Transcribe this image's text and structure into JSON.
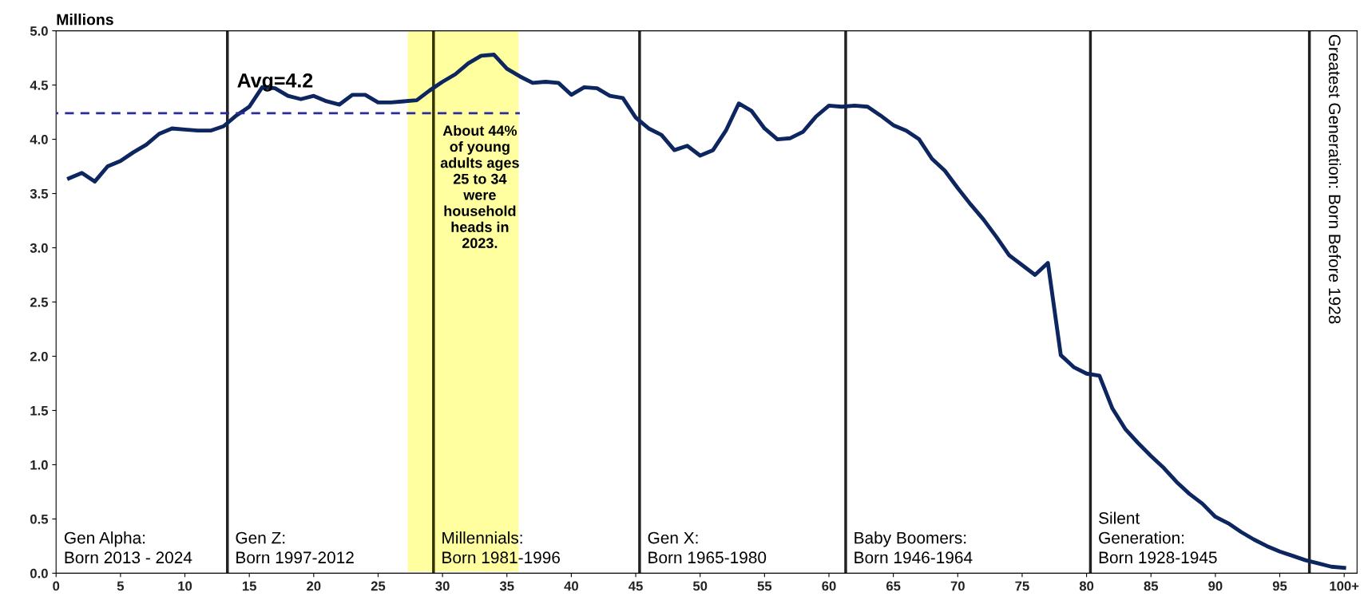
{
  "chart_data": {
    "type": "line",
    "ylabel": "Millions",
    "x": [
      1,
      2,
      3,
      4,
      5,
      6,
      7,
      8,
      9,
      10,
      11,
      12,
      13,
      14,
      15,
      16,
      17,
      18,
      19,
      20,
      21,
      22,
      23,
      24,
      25,
      26,
      27,
      28,
      29,
      30,
      31,
      32,
      33,
      34,
      35,
      36,
      37,
      38,
      39,
      40,
      41,
      42,
      43,
      44,
      45,
      46,
      47,
      48,
      49,
      50,
      51,
      52,
      53,
      54,
      55,
      56,
      57,
      58,
      59,
      60,
      61,
      62,
      63,
      64,
      65,
      66,
      67,
      68,
      69,
      70,
      71,
      72,
      73,
      74,
      75,
      76,
      77,
      78,
      79,
      80,
      81,
      82,
      83,
      84,
      85,
      86,
      87,
      88,
      89,
      90,
      91,
      92,
      93,
      94,
      95,
      96,
      97,
      98,
      99,
      100
    ],
    "series": [
      {
        "color": "#0d2660",
        "values": [
          3.64,
          3.69,
          3.61,
          3.75,
          3.8,
          3.88,
          3.95,
          4.05,
          4.1,
          4.09,
          4.08,
          4.08,
          4.12,
          4.22,
          4.3,
          4.48,
          4.47,
          4.4,
          4.37,
          4.4,
          4.35,
          4.32,
          4.41,
          4.41,
          4.34,
          4.34,
          4.35,
          4.36,
          4.45,
          4.53,
          4.6,
          4.7,
          4.77,
          4.78,
          4.65,
          4.58,
          4.52,
          4.53,
          4.52,
          4.41,
          4.48,
          4.47,
          4.4,
          4.38,
          4.2,
          4.1,
          4.04,
          3.9,
          3.94,
          3.85,
          3.9,
          4.08,
          4.33,
          4.26,
          4.1,
          4.0,
          4.01,
          4.07,
          4.21,
          4.31,
          4.3,
          4.31,
          4.3,
          4.22,
          4.13,
          4.08,
          4.0,
          3.82,
          3.71,
          3.55,
          3.4,
          3.26,
          3.1,
          2.93,
          2.84,
          2.75,
          2.86,
          2.01,
          1.9,
          1.84,
          1.82,
          1.52,
          1.33,
          1.2,
          1.08,
          0.97,
          0.84,
          0.73,
          0.64,
          0.52,
          0.46,
          0.38,
          0.31,
          0.25,
          0.2,
          0.16,
          0.12,
          0.09,
          0.06,
          0.05
        ]
      },
      {
        "type": "line",
        "name": "Avg=4.2",
        "color": "#2b2b9a",
        "line_style": "dashed",
        "x": [
          0,
          36
        ],
        "values": [
          4.24,
          4.24
        ]
      }
    ],
    "xlim": [
      0,
      101
    ],
    "ylim": [
      0,
      5
    ],
    "xticks": [
      0,
      5,
      10,
      15,
      20,
      25,
      30,
      35,
      40,
      45,
      50,
      55,
      60,
      65,
      70,
      75,
      80,
      85,
      90,
      95,
      {
        "value": 100,
        "label": "100+"
      }
    ],
    "yticks": [
      {
        "value": 0,
        "label": "0.0"
      },
      {
        "value": 0.5,
        "label": "0.5"
      },
      {
        "value": 1,
        "label": "1.0"
      },
      {
        "value": 1.5,
        "label": "1.5"
      },
      {
        "value": 2,
        "label": "2.0"
      },
      {
        "value": 2.5,
        "label": "2.5"
      },
      {
        "value": 3,
        "label": "3.0"
      },
      {
        "value": 3.5,
        "label": "3.5"
      },
      {
        "value": 4,
        "label": "4.0"
      },
      {
        "value": 4.5,
        "label": "4.5"
      },
      {
        "value": 5,
        "label": "5.0"
      }
    ],
    "ref_lines": [
      {
        "axis": "x",
        "value": 13.3,
        "color": "#222222"
      },
      {
        "axis": "x",
        "value": 29.3,
        "color": "#333300"
      },
      {
        "axis": "x",
        "value": 45.3,
        "color": "#222222"
      },
      {
        "axis": "x",
        "value": 61.3,
        "color": "#222222"
      },
      {
        "axis": "x",
        "value": 80.3,
        "color": "#222222"
      },
      {
        "axis": "x",
        "value": 97.3,
        "color": "#222222"
      }
    ],
    "annotations": [
      "Gen Alpha:\nBorn 2013 - 2024",
      "Gen Z:\nBorn 1997-2012",
      "Millennials:\nBorn 1981-1996",
      "Gen X:\nBorn 1965-1980",
      "Baby Boomers:\nBorn 1946-1964",
      "Silent\nGeneration:\nBorn 1928-1945",
      "Greatest Generation: Born Before 1928"
    ],
    "bands": [
      {
        "axis": "x",
        "from": 27.3,
        "to": 35.9,
        "color": "#ffff80",
        "label": "About 44%\nof young\nadults ages\n25 to 34\nwere\nhousehold\nheads in\n2023."
      }
    ],
    "grid": false,
    "legend": false
  }
}
